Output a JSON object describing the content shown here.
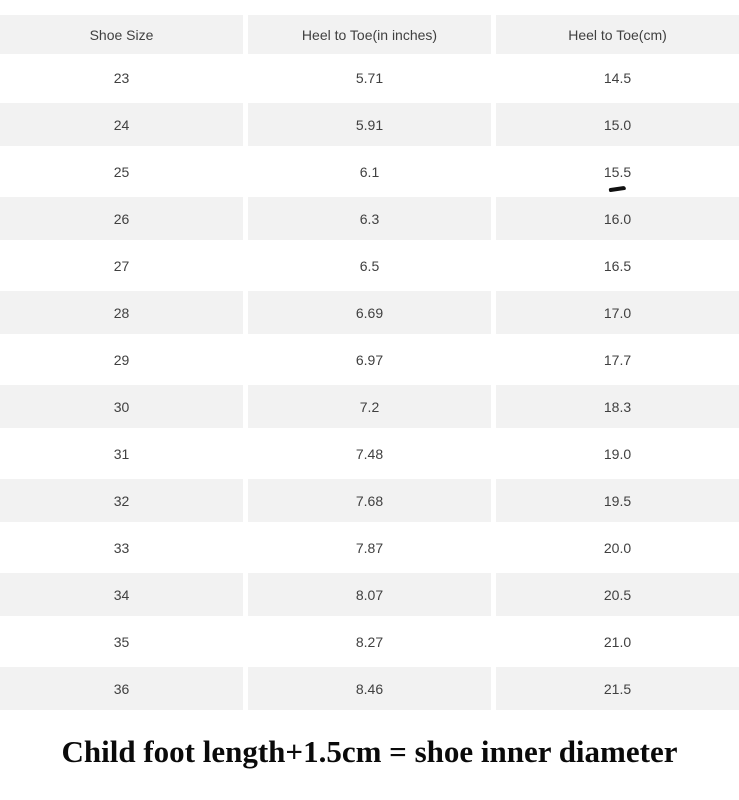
{
  "chart_data": {
    "type": "table",
    "columns": [
      "Shoe Size",
      "Heel to Toe(in inches)",
      "Heel to Toe(cm)"
    ],
    "rows": [
      {
        "shoe_size": "23",
        "inches": "5.71",
        "cm": "14.5"
      },
      {
        "shoe_size": "24",
        "inches": "5.91",
        "cm": "15.0"
      },
      {
        "shoe_size": "25",
        "inches": "6.1",
        "cm": "15.5",
        "cm_annotated": true
      },
      {
        "shoe_size": "26",
        "inches": "6.3",
        "cm": "16.0"
      },
      {
        "shoe_size": "27",
        "inches": "6.5",
        "cm": "16.5"
      },
      {
        "shoe_size": "28",
        "inches": "6.69",
        "cm": "17.0"
      },
      {
        "shoe_size": "29",
        "inches": "6.97",
        "cm": "17.7"
      },
      {
        "shoe_size": "30",
        "inches": "7.2",
        "cm": "18.3"
      },
      {
        "shoe_size": "31",
        "inches": "7.48",
        "cm": "19.0"
      },
      {
        "shoe_size": "32",
        "inches": "7.68",
        "cm": "19.5"
      },
      {
        "shoe_size": "33",
        "inches": "7.87",
        "cm": "20.0"
      },
      {
        "shoe_size": "34",
        "inches": "8.07",
        "cm": "20.5"
      },
      {
        "shoe_size": "35",
        "inches": "8.27",
        "cm": "21.0"
      },
      {
        "shoe_size": "36",
        "inches": "8.46",
        "cm": "21.5"
      }
    ],
    "annotations": [
      {
        "row": "25",
        "column": "Heel to Toe(cm)",
        "type": "hand-drawn dash mark under value 15.5"
      }
    ],
    "title": "Child foot length+1.5cm = shoe inner diameter",
    "layout": "alternating row shading, three equal centered columns, grid off"
  },
  "caption": {
    "text": "Child foot length+1.5cm = shoe inner diameter"
  },
  "colors": {
    "row_shade": "#f2f2f2",
    "table_text": "#404040",
    "caption_text": "#0a0a0a",
    "annotation_mark": "#111111",
    "background": "#ffffff"
  }
}
